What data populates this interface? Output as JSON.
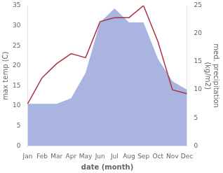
{
  "chart_data": {
    "type": "line",
    "xlabel": "date (month)",
    "ylabel": "max temp (C)",
    "y2label": [
      "med. precipitation",
      "(kg/m2)"
    ],
    "categories": [
      "Jan",
      "Feb",
      "Mar",
      "Apr",
      "May",
      "Jun",
      "Jul",
      "Aug",
      "Sep",
      "Oct",
      "Nov",
      "Dec"
    ],
    "series": [
      {
        "type": "area",
        "axis": "y2",
        "color": "#aab4e0",
        "values": [
          7.5,
          7.5,
          7.5,
          8.5,
          13.0,
          22.0,
          24.5,
          22.0,
          22.0,
          15.5,
          11.5,
          10.0
        ]
      },
      {
        "type": "line",
        "color": "#aa3344",
        "values": [
          10.5,
          17.0,
          20.5,
          23.0,
          22.0,
          31.0,
          32.0,
          32.0,
          35.0,
          26.0,
          14.0,
          13.0
        ]
      }
    ],
    "ylim": [
      0,
      35
    ],
    "yticks": [
      0,
      5,
      10,
      15,
      20,
      25,
      30,
      35
    ],
    "y2lim": [
      0,
      25
    ],
    "y2ticks": [
      0,
      5,
      10,
      15,
      20,
      25
    ],
    "grid": false
  }
}
